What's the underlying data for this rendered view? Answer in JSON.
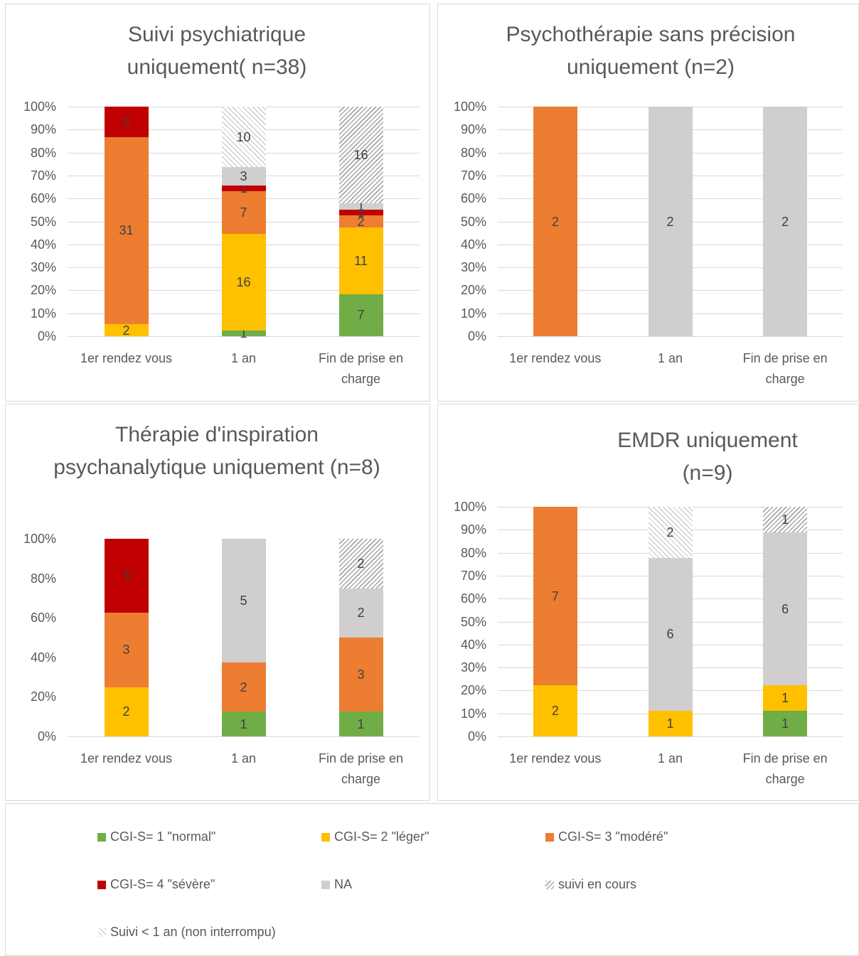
{
  "chart_data": [
    {
      "type": "bar",
      "stacking": "percent",
      "title": "Suivi psychiatrique uniquement( n=38)",
      "categories": [
        "1er rendez vous",
        "1 an",
        "Fin de prise en charge"
      ],
      "ylim": [
        0,
        100
      ],
      "yticks": [
        {
          "value": 0,
          "label": "0%"
        },
        {
          "value": 10,
          "label": "10%"
        },
        {
          "value": 20,
          "label": "20%"
        },
        {
          "value": 30,
          "label": "30%"
        },
        {
          "value": 40,
          "label": "40%"
        },
        {
          "value": 50,
          "label": "50%"
        },
        {
          "value": 60,
          "label": "60%"
        },
        {
          "value": 70,
          "label": "70%"
        },
        {
          "value": 80,
          "label": "80%"
        },
        {
          "value": 90,
          "label": "90%"
        },
        {
          "value": 100,
          "label": "100%"
        }
      ],
      "grid": true,
      "series": [
        {
          "values": [
            null,
            1,
            7
          ]
        },
        {
          "values": [
            2,
            16,
            11
          ]
        },
        {
          "values": [
            31,
            7,
            2
          ]
        },
        {
          "values": [
            5,
            1,
            1
          ]
        },
        {
          "values": [
            null,
            3,
            1
          ]
        },
        {
          "values": [
            null,
            null,
            16
          ]
        },
        {
          "values": [
            null,
            10,
            null
          ]
        }
      ]
    },
    {
      "type": "bar",
      "stacking": "percent",
      "title": "Psychothérapie sans précision uniquement (n=2)",
      "categories": [
        "1er rendez vous",
        "1 an",
        "Fin de prise en charge"
      ],
      "ylim": [
        0,
        100
      ],
      "yticks": [
        {
          "value": 0,
          "label": "0%"
        },
        {
          "value": 10,
          "label": "10%"
        },
        {
          "value": 20,
          "label": "20%"
        },
        {
          "value": 30,
          "label": "30%"
        },
        {
          "value": 40,
          "label": "40%"
        },
        {
          "value": 50,
          "label": "50%"
        },
        {
          "value": 60,
          "label": "60%"
        },
        {
          "value": 70,
          "label": "70%"
        },
        {
          "value": 80,
          "label": "80%"
        },
        {
          "value": 90,
          "label": "90%"
        },
        {
          "value": 100,
          "label": "100%"
        }
      ],
      "grid": true,
      "series": [
        {
          "values": [
            null,
            null,
            null
          ]
        },
        {
          "values": [
            null,
            null,
            null
          ]
        },
        {
          "values": [
            2,
            null,
            null
          ]
        },
        {
          "values": [
            null,
            null,
            null
          ]
        },
        {
          "values": [
            null,
            2,
            2
          ]
        },
        {
          "values": [
            null,
            null,
            null
          ]
        },
        {
          "values": [
            null,
            null,
            null
          ]
        }
      ]
    },
    {
      "type": "bar",
      "stacking": "percent",
      "title": "Thérapie d'inspiration psychanalytique uniquement (n=8)",
      "categories": [
        "1er rendez vous",
        "1 an",
        "Fin de prise en charge"
      ],
      "ylim": [
        0,
        100
      ],
      "yticks": [
        {
          "value": 0,
          "label": "0%"
        },
        {
          "value": 20,
          "label": "20%"
        },
        {
          "value": 40,
          "label": "40%"
        },
        {
          "value": 60,
          "label": "60%"
        },
        {
          "value": 80,
          "label": "80%"
        },
        {
          "value": 100,
          "label": "100%"
        }
      ],
      "grid": false,
      "series": [
        {
          "values": [
            null,
            1,
            1
          ]
        },
        {
          "values": [
            2,
            null,
            null
          ]
        },
        {
          "values": [
            3,
            2,
            3
          ]
        },
        {
          "values": [
            3,
            null,
            null
          ]
        },
        {
          "values": [
            null,
            5,
            2
          ]
        },
        {
          "values": [
            null,
            null,
            2
          ]
        },
        {
          "values": [
            null,
            null,
            null
          ]
        }
      ]
    },
    {
      "type": "bar",
      "stacking": "percent",
      "title": "EMDR uniquement (n=9)",
      "categories": [
        "1er rendez vous",
        "1 an",
        "Fin de prise en charge"
      ],
      "ylim": [
        0,
        100
      ],
      "yticks": [
        {
          "value": 0,
          "label": "0%"
        },
        {
          "value": 10,
          "label": "10%"
        },
        {
          "value": 20,
          "label": "20%"
        },
        {
          "value": 30,
          "label": "30%"
        },
        {
          "value": 40,
          "label": "40%"
        },
        {
          "value": 50,
          "label": "50%"
        },
        {
          "value": 60,
          "label": "60%"
        },
        {
          "value": 70,
          "label": "70%"
        },
        {
          "value": 80,
          "label": "80%"
        },
        {
          "value": 90,
          "label": "90%"
        },
        {
          "value": 100,
          "label": "100%"
        }
      ],
      "grid": true,
      "series": [
        {
          "values": [
            null,
            null,
            1
          ]
        },
        {
          "values": [
            2,
            1,
            1
          ]
        },
        {
          "values": [
            7,
            null,
            null
          ]
        },
        {
          "values": [
            null,
            null,
            null
          ]
        },
        {
          "values": [
            null,
            6,
            6
          ]
        },
        {
          "values": [
            null,
            null,
            1
          ]
        },
        {
          "values": [
            null,
            2,
            null
          ]
        }
      ]
    }
  ],
  "legend": [
    {
      "name": "CGI-S= 1 \"normal\"",
      "color": "#70ad47"
    },
    {
      "name": "CGI-S= 2 \"léger\"",
      "color": "#ffc000"
    },
    {
      "name": "CGI-S= 3 \"modéré\"",
      "color": "#ed7d31"
    },
    {
      "name": "CGI-S= 4 \"sévère\"",
      "color": "#c00000"
    },
    {
      "name": "NA",
      "color": "#d0cece"
    },
    {
      "name": "suivi en cours",
      "color": "#a6a6a6",
      "pattern": "hatch-dense"
    },
    {
      "name": "Suivi < 1 an (non interrompu)",
      "color": "#bfbfbf",
      "pattern": "hatch-light"
    }
  ]
}
